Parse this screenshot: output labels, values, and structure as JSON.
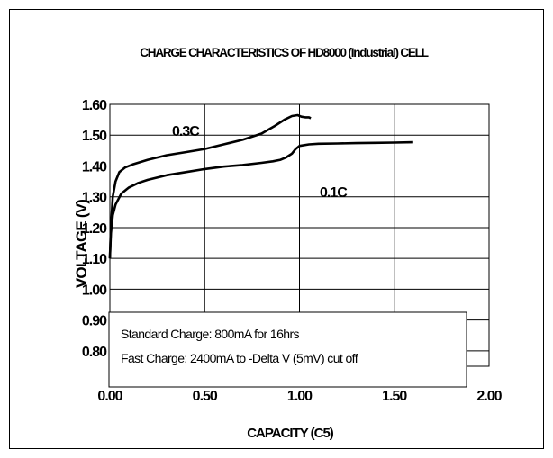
{
  "chart_data": {
    "type": "line",
    "title": "CHARGE CHARACTERISTICS OF HD8000 (Industrial) CELL",
    "xlabel": "CAPACITY (C5)",
    "ylabel": "VOLTAGE (V)",
    "xlim": [
      0,
      2.0
    ],
    "ylim": [
      0.75,
      1.6
    ],
    "x_ticks": [
      "0.00",
      "0.50",
      "1.00",
      "1.50",
      "2.00"
    ],
    "y_ticks": [
      "1.60",
      "1.50",
      "1.40",
      "1.30",
      "1.20",
      "1.10",
      "1.00",
      "0.90",
      "0.80"
    ],
    "grid": true,
    "series": [
      {
        "name": "0.3C",
        "x": [
          0.0,
          0.005,
          0.015,
          0.03,
          0.05,
          0.08,
          0.12,
          0.2,
          0.3,
          0.4,
          0.5,
          0.6,
          0.7,
          0.8,
          0.87,
          0.92,
          0.96,
          0.99,
          1.01,
          1.03,
          1.05,
          1.06
        ],
        "y": [
          1.1,
          1.2,
          1.3,
          1.35,
          1.38,
          1.395,
          1.405,
          1.42,
          1.435,
          1.445,
          1.455,
          1.47,
          1.485,
          1.505,
          1.53,
          1.55,
          1.562,
          1.565,
          1.56,
          1.558,
          1.558,
          1.555
        ]
      },
      {
        "name": "0.1C",
        "x": [
          0.0,
          0.005,
          0.015,
          0.03,
          0.06,
          0.1,
          0.15,
          0.2,
          0.3,
          0.4,
          0.5,
          0.6,
          0.7,
          0.8,
          0.86,
          0.9,
          0.93,
          0.96,
          0.98,
          1.0,
          1.05,
          1.1,
          1.2,
          1.3,
          1.4,
          1.5,
          1.6
        ],
        "y": [
          1.1,
          1.18,
          1.24,
          1.275,
          1.31,
          1.33,
          1.345,
          1.355,
          1.37,
          1.38,
          1.39,
          1.398,
          1.403,
          1.41,
          1.415,
          1.42,
          1.428,
          1.44,
          1.455,
          1.465,
          1.47,
          1.472,
          1.473,
          1.474,
          1.475,
          1.476,
          1.477
        ]
      }
    ],
    "annotations": [
      "Standard Charge:  800mA  for 16hrs",
      "Fast Charge: 2400mA to -Delta V (5mV) cut off"
    ]
  }
}
